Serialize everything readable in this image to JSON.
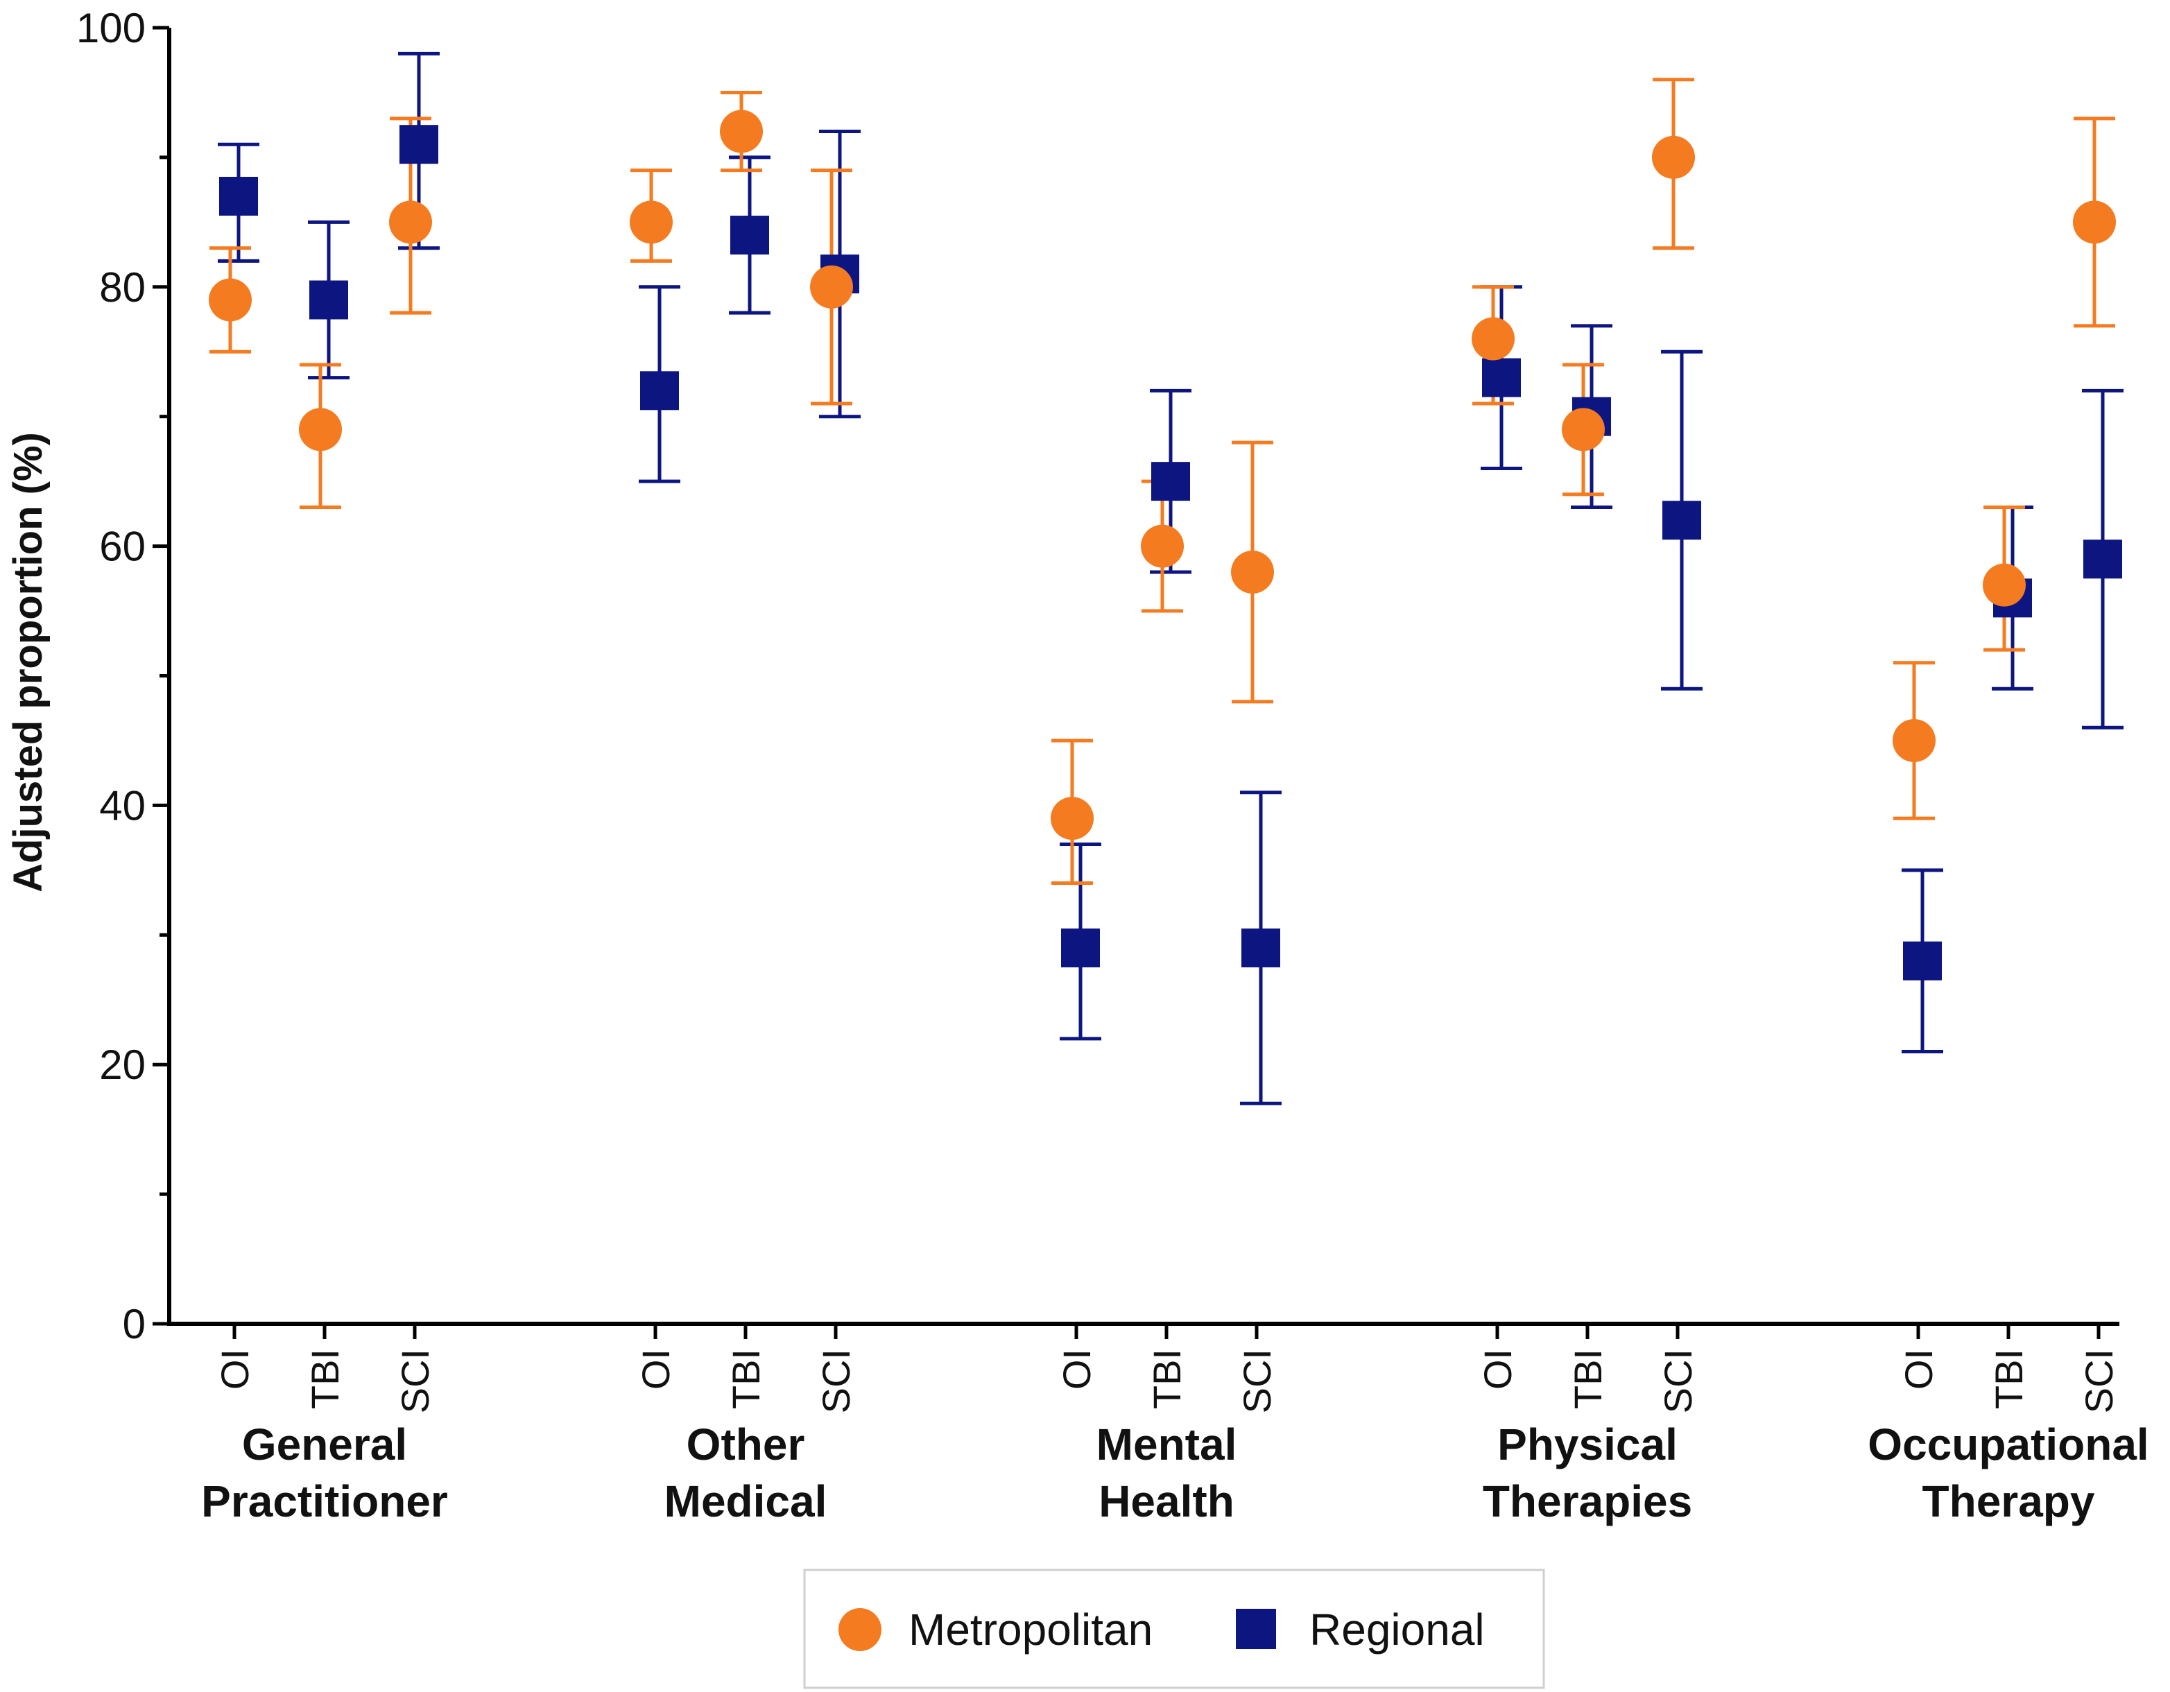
{
  "chart_data": {
    "type": "scatter",
    "title": "",
    "ylabel": "Adjusted proportion (%)",
    "xlabel": "",
    "ylim": [
      0,
      100
    ],
    "yticks": [
      0,
      20,
      40,
      60,
      80,
      100
    ],
    "y_minor_step": 10,
    "grid": false,
    "groups": [
      {
        "label_lines": [
          "General",
          "Practitioner"
        ],
        "categories": [
          "OI",
          "TBI",
          "SCI"
        ]
      },
      {
        "label_lines": [
          "Other",
          "Medical"
        ],
        "categories": [
          "OI",
          "TBI",
          "SCI"
        ]
      },
      {
        "label_lines": [
          "Mental",
          "Health"
        ],
        "categories": [
          "OI",
          "TBI",
          "SCI"
        ]
      },
      {
        "label_lines": [
          "Physical",
          "Therapies"
        ],
        "categories": [
          "OI",
          "TBI",
          "SCI"
        ]
      },
      {
        "label_lines": [
          "Occupational",
          "Therapy"
        ],
        "categories": [
          "OI",
          "TBI",
          "SCI"
        ]
      }
    ],
    "series": [
      {
        "name": "Metropolitan",
        "marker": "circle",
        "color": "#F47B20",
        "values": [
          79,
          69,
          85,
          85,
          92,
          80,
          39,
          60,
          58,
          76,
          69,
          90,
          45,
          57,
          85
        ],
        "lower": [
          75,
          63,
          78,
          82,
          89,
          71,
          34,
          55,
          48,
          71,
          64,
          83,
          39,
          52,
          77
        ],
        "upper": [
          83,
          74,
          93,
          89,
          95,
          89,
          45,
          65,
          68,
          80,
          74,
          96,
          51,
          63,
          93
        ]
      },
      {
        "name": "Regional",
        "marker": "square",
        "color": "#0D1580",
        "values": [
          87,
          79,
          91,
          72,
          84,
          81,
          29,
          65,
          29,
          73,
          70,
          62,
          28,
          56,
          59
        ],
        "lower": [
          82,
          73,
          83,
          65,
          78,
          70,
          22,
          58,
          17,
          66,
          63,
          49,
          21,
          49,
          46
        ],
        "upper": [
          91,
          85,
          98,
          80,
          90,
          92,
          37,
          72,
          41,
          80,
          77,
          75,
          35,
          63,
          72
        ]
      }
    ],
    "legend": {
      "position": "bottom-center",
      "items": [
        "Metropolitan",
        "Regional"
      ]
    }
  }
}
